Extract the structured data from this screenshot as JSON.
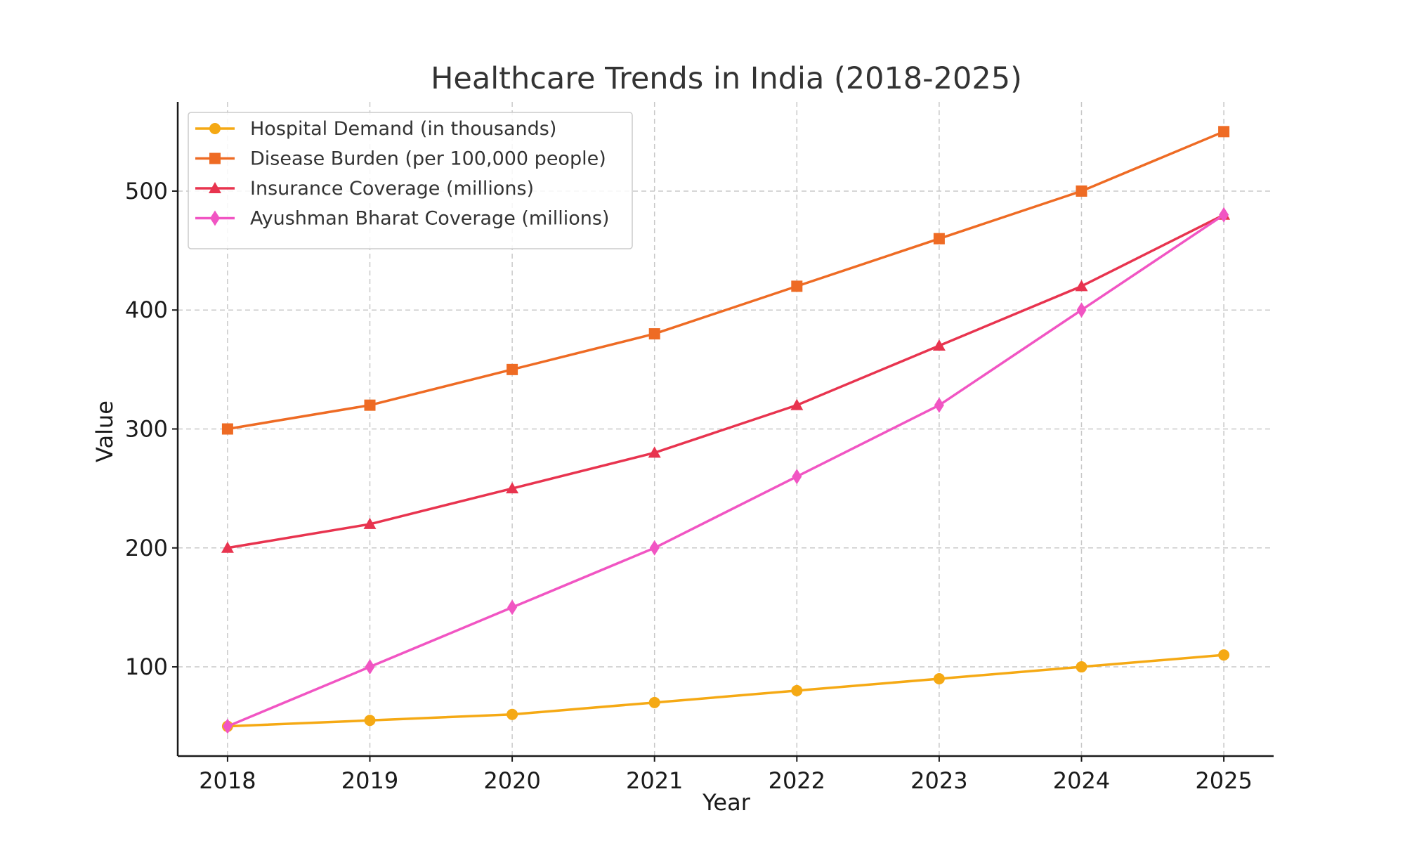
{
  "chart_data": {
    "type": "line",
    "title": "Healthcare Trends in India (2018-2025)",
    "xlabel": "Year",
    "ylabel": "Value",
    "x": [
      2018,
      2019,
      2020,
      2021,
      2022,
      2023,
      2024,
      2025
    ],
    "xlim": [
      2017.65,
      2025.35
    ],
    "ylim": [
      25,
      575
    ],
    "yticks": [
      100,
      200,
      300,
      400,
      500
    ],
    "grid": true,
    "legend_position": "top-left",
    "series": [
      {
        "name": "Hospital Demand (in thousands)",
        "color": "#f5a914",
        "marker": "circle",
        "values": [
          50,
          55,
          60,
          70,
          80,
          90,
          100,
          110
        ]
      },
      {
        "name": "Disease Burden (per 100,000 people)",
        "color": "#ee6b24",
        "marker": "square",
        "values": [
          300,
          320,
          350,
          380,
          420,
          460,
          500,
          550
        ]
      },
      {
        "name": "Insurance Coverage (millions)",
        "color": "#e8344f",
        "marker": "triangle",
        "values": [
          200,
          220,
          250,
          280,
          320,
          370,
          420,
          480
        ]
      },
      {
        "name": "Ayushman Bharat Coverage (millions)",
        "color": "#f155c3",
        "marker": "diamond",
        "values": [
          50,
          100,
          150,
          200,
          260,
          320,
          400,
          480
        ]
      }
    ]
  }
}
